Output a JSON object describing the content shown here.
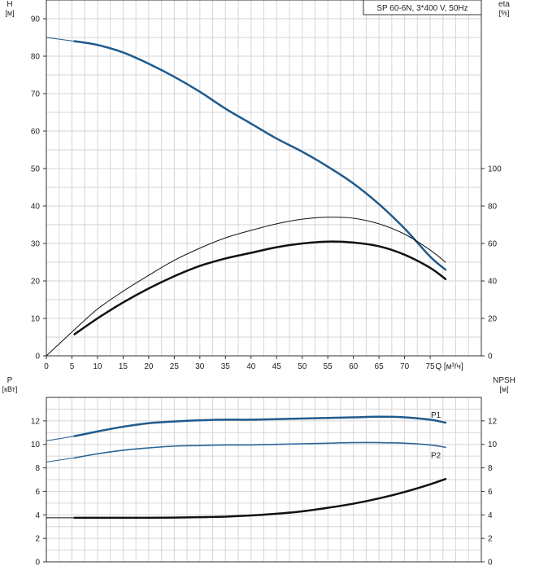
{
  "chart_data": [
    {
      "type": "line",
      "title_box": "SP 60-6N, 3*400 V, 50Hz",
      "left_axis": {
        "label": "H",
        "unit": "[м]",
        "range": [
          0,
          95
        ],
        "ticks": [
          0,
          10,
          20,
          30,
          40,
          50,
          60,
          70,
          80,
          90
        ]
      },
      "right_axis": {
        "label": "eta",
        "unit": "[%]",
        "range": [
          0,
          190
        ],
        "ticks": [
          0,
          20,
          40,
          60,
          80,
          100
        ]
      },
      "x_axis": {
        "label": "Q",
        "unit": "[м³/ч]",
        "range": [
          0,
          85
        ],
        "ticks": [
          0,
          5,
          10,
          15,
          20,
          25,
          30,
          35,
          40,
          45,
          50,
          55,
          60,
          65,
          70,
          75
        ]
      },
      "grid": true,
      "series": [
        {
          "key": "H",
          "axis": "left",
          "color": "#1f5a8c",
          "width": 2.5,
          "extend": true,
          "x": [
            0,
            5.5,
            10,
            15,
            20,
            25,
            30,
            35,
            40,
            45,
            50,
            55,
            60,
            65,
            70,
            75,
            78
          ],
          "y": [
            85,
            84,
            83,
            81,
            78,
            74.5,
            70.5,
            66,
            62,
            58,
            54.5,
            50.5,
            46,
            40.5,
            34,
            26.5,
            23
          ]
        },
        {
          "key": "eta_thin",
          "axis": "right",
          "color": "#111111",
          "width": 1,
          "extend": true,
          "x": [
            0,
            5.5,
            10,
            15,
            20,
            25,
            30,
            35,
            40,
            45,
            50,
            55,
            60,
            65,
            70,
            75,
            78
          ],
          "y": [
            0,
            14,
            25,
            34.5,
            43,
            51,
            57.5,
            63,
            67,
            70.5,
            73,
            74,
            73.5,
            70.5,
            65,
            56.5,
            50
          ]
        },
        {
          "key": "eta",
          "axis": "right",
          "color": "#111111",
          "width": 2.5,
          "x": [
            5.5,
            10,
            15,
            20,
            25,
            30,
            35,
            40,
            45,
            50,
            55,
            60,
            65,
            70,
            75,
            78
          ],
          "y": [
            11.5,
            20,
            28.5,
            36,
            42.5,
            48,
            52,
            55,
            58,
            60,
            61,
            60.5,
            58.5,
            54,
            47,
            41
          ]
        }
      ]
    },
    {
      "type": "line",
      "left_axis": {
        "label": "P",
        "unit": "[кВт]",
        "range": [
          0,
          14
        ],
        "ticks": [
          0,
          2,
          4,
          6,
          8,
          10,
          12
        ]
      },
      "right_axis": {
        "label": "NPSH",
        "unit": "[м]",
        "range": [
          0,
          14
        ],
        "ticks": [
          0,
          2,
          4,
          6,
          8,
          10,
          12
        ]
      },
      "x_axis": {
        "range": [
          0,
          85
        ]
      },
      "grid": true,
      "series": [
        {
          "key": "P1",
          "name": "P1",
          "axis": "left",
          "color": "#1f5a8c",
          "width": 2.5,
          "extend": true,
          "x": [
            0,
            5.5,
            10,
            15,
            20,
            25,
            30,
            35,
            40,
            45,
            50,
            55,
            60,
            65,
            70,
            75,
            78
          ],
          "y": [
            10.3,
            10.7,
            11.1,
            11.5,
            11.8,
            11.95,
            12.05,
            12.1,
            12.1,
            12.15,
            12.2,
            12.25,
            12.3,
            12.35,
            12.3,
            12.1,
            11.85
          ]
        },
        {
          "key": "P2",
          "name": "P2",
          "axis": "left",
          "color": "#2b6598",
          "width": 1.6,
          "extend": true,
          "x": [
            0,
            5.5,
            10,
            15,
            20,
            25,
            30,
            35,
            40,
            45,
            50,
            55,
            60,
            65,
            70,
            75,
            78
          ],
          "y": [
            8.5,
            8.85,
            9.2,
            9.5,
            9.7,
            9.85,
            9.9,
            9.95,
            9.95,
            10.0,
            10.05,
            10.1,
            10.15,
            10.15,
            10.1,
            9.95,
            9.75
          ]
        },
        {
          "key": "NPSH",
          "axis": "right",
          "color": "#111111",
          "width": 2.5,
          "extend": true,
          "x": [
            0,
            5.5,
            10,
            15,
            20,
            25,
            30,
            35,
            40,
            45,
            50,
            55,
            60,
            65,
            70,
            75,
            78
          ],
          "y": [
            3.75,
            3.75,
            3.75,
            3.75,
            3.75,
            3.77,
            3.8,
            3.85,
            3.95,
            4.1,
            4.3,
            4.6,
            4.95,
            5.4,
            5.95,
            6.6,
            7.05
          ]
        }
      ]
    }
  ]
}
